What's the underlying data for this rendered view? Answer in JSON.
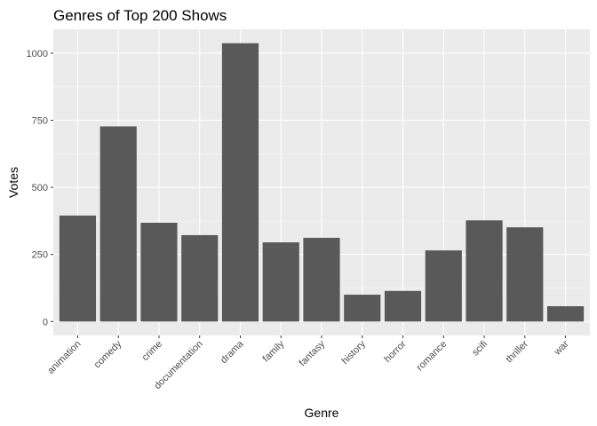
{
  "chart_data": {
    "type": "bar",
    "title": "Genres of Top 200 Shows",
    "xlabel": "Genre",
    "ylabel": "Votes",
    "categories": [
      "animation",
      "comedy",
      "crime",
      "documentation",
      "drama",
      "family",
      "fantasy",
      "history",
      "horror",
      "romance",
      "scifi",
      "thriller",
      "war"
    ],
    "values": [
      395,
      727,
      368,
      322,
      1037,
      295,
      312,
      100,
      114,
      265,
      377,
      351,
      57
    ],
    "yticks": [
      0,
      250,
      500,
      750,
      1000
    ],
    "ylim": [
      -52,
      1089
    ],
    "grid": true,
    "legend": "none",
    "colors": {
      "bar": "#595959",
      "panel": "#ebebeb",
      "grid_major": "#ffffff",
      "tick_label": "#4d4d4d"
    }
  }
}
